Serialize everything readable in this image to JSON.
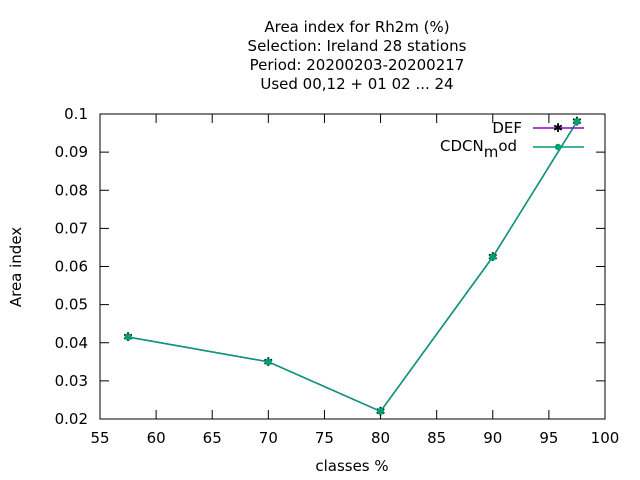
{
  "chart_data": {
    "type": "line",
    "title_lines": [
      "Area index  for Rh2m (%)",
      "Selection: Ireland     28 stations",
      "Period: 20200203-20200217",
      "Used  00,12  + 01 02 ... 24"
    ],
    "xlabel": "classes %",
    "ylabel": "Area index",
    "xlim": [
      55,
      100
    ],
    "ylim": [
      0.02,
      0.1
    ],
    "xticks": [
      55,
      60,
      65,
      70,
      75,
      80,
      85,
      90,
      95,
      100
    ],
    "xtick_labels": [
      "55",
      "60",
      "65",
      "70",
      "75",
      "80",
      "85",
      "90",
      "95",
      "100"
    ],
    "yticks": [
      0.02,
      0.03,
      0.04,
      0.05,
      0.06,
      0.07,
      0.08,
      0.09,
      0.1
    ],
    "ytick_labels": [
      "0.02",
      "0.03",
      "0.04",
      "0.05",
      "0.06",
      "0.07",
      "0.08",
      "0.09",
      "0.1"
    ],
    "grid": false,
    "legend_position": "top-right",
    "series": [
      {
        "name": "DEF",
        "color": "#9400d3",
        "marker": "star",
        "x": [
          57.5,
          70,
          80,
          90,
          97.5
        ],
        "y": [
          0.0415,
          0.035,
          0.022,
          0.0625,
          0.098
        ]
      },
      {
        "name": "CDCN_mod",
        "legend_main": "CDCN",
        "legend_sub": "m",
        "legend_tail": "od",
        "color": "#009e73",
        "marker": "circle",
        "x": [
          57.5,
          70,
          80,
          90,
          97.5
        ],
        "y": [
          0.0415,
          0.035,
          0.022,
          0.0625,
          0.098
        ]
      }
    ]
  }
}
